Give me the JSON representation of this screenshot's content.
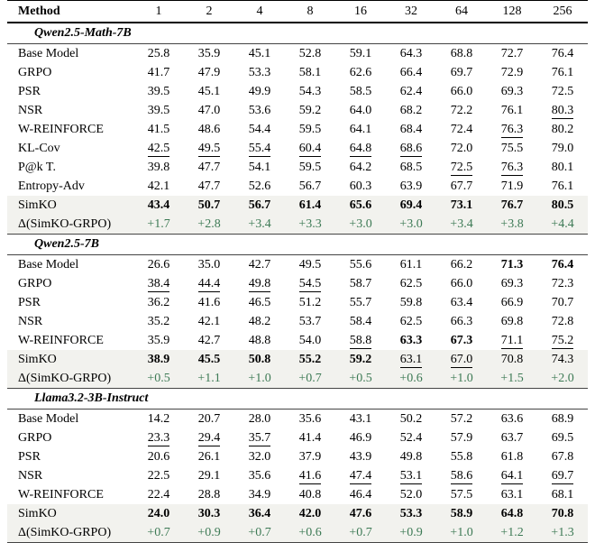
{
  "table": {
    "columns": [
      "Method",
      "1",
      "2",
      "4",
      "8",
      "16",
      "32",
      "64",
      "128",
      "256"
    ],
    "sections": [
      {
        "title": "Qwen2.5-Math-7B",
        "rows": [
          {
            "method": "Base Model",
            "type": "normal",
            "values": [
              "25.8",
              "35.9",
              "45.1",
              "52.8",
              "59.1",
              "64.3",
              "68.8",
              "72.7",
              "76.4"
            ],
            "styles": [
              "",
              "",
              "",
              "",
              "",
              "",
              "",
              "",
              ""
            ]
          },
          {
            "method": "GRPO",
            "type": "normal",
            "values": [
              "41.7",
              "47.9",
              "53.3",
              "58.1",
              "62.6",
              "66.4",
              "69.7",
              "72.9",
              "76.1"
            ],
            "styles": [
              "",
              "",
              "",
              "",
              "",
              "",
              "",
              "",
              ""
            ]
          },
          {
            "method": "PSR",
            "type": "normal",
            "values": [
              "39.5",
              "45.1",
              "49.9",
              "54.3",
              "58.5",
              "62.4",
              "66.0",
              "69.3",
              "72.5"
            ],
            "styles": [
              "",
              "",
              "",
              "",
              "",
              "",
              "",
              "",
              ""
            ]
          },
          {
            "method": "NSR",
            "type": "normal",
            "values": [
              "39.5",
              "47.0",
              "53.6",
              "59.2",
              "64.0",
              "68.2",
              "72.2",
              "76.1",
              "80.3"
            ],
            "styles": [
              "",
              "",
              "",
              "",
              "",
              "",
              "",
              "",
              "u"
            ]
          },
          {
            "method": "W-REINFORCE",
            "type": "normal",
            "values": [
              "41.5",
              "48.6",
              "54.4",
              "59.5",
              "64.1",
              "68.4",
              "72.4",
              "76.3",
              "80.2"
            ],
            "styles": [
              "",
              "",
              "",
              "",
              "",
              "",
              "",
              "u",
              ""
            ]
          },
          {
            "method": "KL-Cov",
            "type": "normal",
            "values": [
              "42.5",
              "49.5",
              "55.4",
              "60.4",
              "64.8",
              "68.6",
              "72.0",
              "75.5",
              "79.0"
            ],
            "styles": [
              "u",
              "u",
              "u",
              "u",
              "u",
              "u",
              "",
              "",
              ""
            ]
          },
          {
            "method": "P@k T.",
            "type": "normal",
            "values": [
              "39.8",
              "47.7",
              "54.1",
              "59.5",
              "64.2",
              "68.5",
              "72.5",
              "76.3",
              "80.1"
            ],
            "styles": [
              "",
              "",
              "",
              "",
              "",
              "",
              "u",
              "u",
              ""
            ]
          },
          {
            "method": "Entropy-Adv",
            "type": "normal",
            "values": [
              "42.1",
              "47.7",
              "52.6",
              "56.7",
              "60.3",
              "63.9",
              "67.7",
              "71.9",
              "76.1"
            ],
            "styles": [
              "",
              "",
              "",
              "",
              "",
              "",
              "",
              "",
              ""
            ]
          },
          {
            "method": "SimKO",
            "type": "highlight",
            "values": [
              "43.4",
              "50.7",
              "56.7",
              "61.4",
              "65.6",
              "69.4",
              "73.1",
              "76.7",
              "80.5"
            ],
            "styles": [
              "b",
              "b",
              "b",
              "b",
              "b",
              "b",
              "b",
              "b",
              "b"
            ]
          },
          {
            "method": "Δ(SimKO-GRPO)",
            "type": "delta",
            "values": [
              "+1.7",
              "+2.8",
              "+3.4",
              "+3.3",
              "+3.0",
              "+3.0",
              "+3.4",
              "+3.8",
              "+4.4"
            ],
            "styles": [
              "",
              "",
              "",
              "",
              "",
              "",
              "",
              "",
              ""
            ]
          }
        ]
      },
      {
        "title": "Qwen2.5-7B",
        "rows": [
          {
            "method": "Base Model",
            "type": "normal",
            "values": [
              "26.6",
              "35.0",
              "42.7",
              "49.5",
              "55.6",
              "61.1",
              "66.2",
              "71.3",
              "76.4"
            ],
            "styles": [
              "",
              "",
              "",
              "",
              "",
              "",
              "",
              "b",
              "b"
            ]
          },
          {
            "method": "GRPO",
            "type": "normal",
            "values": [
              "38.4",
              "44.4",
              "49.8",
              "54.5",
              "58.7",
              "62.5",
              "66.0",
              "69.3",
              "72.3"
            ],
            "styles": [
              "u",
              "u",
              "u",
              "u",
              "",
              "",
              "",
              "",
              ""
            ]
          },
          {
            "method": "PSR",
            "type": "normal",
            "values": [
              "36.2",
              "41.6",
              "46.5",
              "51.2",
              "55.7",
              "59.8",
              "63.4",
              "66.9",
              "70.7"
            ],
            "styles": [
              "",
              "",
              "",
              "",
              "",
              "",
              "",
              "",
              ""
            ]
          },
          {
            "method": "NSR",
            "type": "normal",
            "values": [
              "35.2",
              "42.1",
              "48.2",
              "53.7",
              "58.4",
              "62.5",
              "66.3",
              "69.8",
              "72.8"
            ],
            "styles": [
              "",
              "",
              "",
              "",
              "",
              "",
              "",
              "",
              ""
            ]
          },
          {
            "method": "W-REINFORCE",
            "type": "normal",
            "values": [
              "35.9",
              "42.7",
              "48.8",
              "54.0",
              "58.8",
              "63.3",
              "67.3",
              "71.1",
              "75.2"
            ],
            "styles": [
              "",
              "",
              "",
              "",
              "u",
              "b",
              "b",
              "u",
              "u"
            ]
          },
          {
            "method": "SimKO",
            "type": "highlight",
            "values": [
              "38.9",
              "45.5",
              "50.8",
              "55.2",
              "59.2",
              "63.1",
              "67.0",
              "70.8",
              "74.3"
            ],
            "styles": [
              "b",
              "b",
              "b",
              "b",
              "b",
              "u",
              "u",
              "",
              ""
            ]
          },
          {
            "method": "Δ(SimKO-GRPO)",
            "type": "delta",
            "values": [
              "+0.5",
              "+1.1",
              "+1.0",
              "+0.7",
              "+0.5",
              "+0.6",
              "+1.0",
              "+1.5",
              "+2.0"
            ],
            "styles": [
              "",
              "",
              "",
              "",
              "",
              "",
              "",
              "",
              ""
            ]
          }
        ]
      },
      {
        "title": "Llama3.2-3B-Instruct",
        "rows": [
          {
            "method": "Base Model",
            "type": "normal",
            "values": [
              "14.2",
              "20.7",
              "28.0",
              "35.6",
              "43.1",
              "50.2",
              "57.2",
              "63.6",
              "68.9"
            ],
            "styles": [
              "",
              "",
              "",
              "",
              "",
              "",
              "",
              "",
              ""
            ]
          },
          {
            "method": "GRPO",
            "type": "normal",
            "values": [
              "23.3",
              "29.4",
              "35.7",
              "41.4",
              "46.9",
              "52.4",
              "57.9",
              "63.7",
              "69.5"
            ],
            "styles": [
              "u",
              "u",
              "u",
              "",
              "",
              "",
              "",
              "",
              ""
            ]
          },
          {
            "method": "PSR",
            "type": "normal",
            "values": [
              "20.6",
              "26.1",
              "32.0",
              "37.9",
              "43.9",
              "49.8",
              "55.8",
              "61.8",
              "67.8"
            ],
            "styles": [
              "",
              "",
              "",
              "",
              "",
              "",
              "",
              "",
              ""
            ]
          },
          {
            "method": "NSR",
            "type": "normal",
            "values": [
              "22.5",
              "29.1",
              "35.6",
              "41.6",
              "47.4",
              "53.1",
              "58.6",
              "64.1",
              "69.7"
            ],
            "styles": [
              "",
              "",
              "",
              "u",
              "u",
              "u",
              "u",
              "u",
              "u"
            ]
          },
          {
            "method": "W-REINFORCE",
            "type": "normal",
            "values": [
              "22.4",
              "28.8",
              "34.9",
              "40.8",
              "46.4",
              "52.0",
              "57.5",
              "63.1",
              "68.1"
            ],
            "styles": [
              "",
              "",
              "",
              "",
              "",
              "",
              "",
              "",
              ""
            ]
          },
          {
            "method": "SimKO",
            "type": "highlight",
            "values": [
              "24.0",
              "30.3",
              "36.4",
              "42.0",
              "47.6",
              "53.3",
              "58.9",
              "64.8",
              "70.8"
            ],
            "styles": [
              "b",
              "b",
              "b",
              "b",
              "b",
              "b",
              "b",
              "b",
              "b"
            ]
          },
          {
            "method": "Δ(SimKO-GRPO)",
            "type": "delta",
            "values": [
              "+0.7",
              "+0.9",
              "+0.7",
              "+0.6",
              "+0.7",
              "+0.9",
              "+1.0",
              "+1.2",
              "+1.3"
            ],
            "styles": [
              "",
              "",
              "",
              "",
              "",
              "",
              "",
              "",
              ""
            ]
          }
        ]
      }
    ]
  },
  "colors": {
    "highlight_bg": "#f2f2ee",
    "delta_green": "#3d7a55",
    "rule_color": "#000000"
  }
}
